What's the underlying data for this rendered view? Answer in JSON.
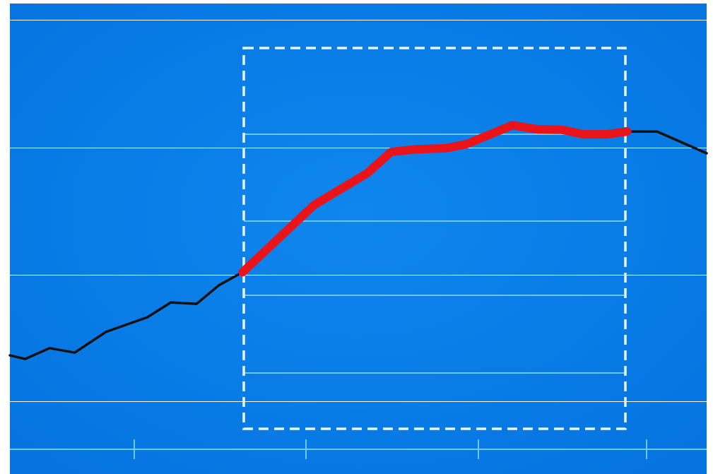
{
  "chart_data": {
    "type": "line",
    "x": [
      0,
      2.2,
      5.7,
      9.3,
      13.8,
      19.7,
      23.1,
      26.8,
      30.0,
      33.4,
      43.7,
      51.3,
      54.7,
      58.4,
      62.5,
      65.5,
      72.1,
      75.7,
      79.2,
      82.3,
      85.8,
      88.6,
      92.9,
      100
    ],
    "xlim": [
      0,
      100
    ],
    "ylim": [
      0,
      100
    ],
    "series": [
      {
        "color": "#111111",
        "values": [
          21.4,
          20.6,
          23.0,
          22.0,
          26.6,
          29.8,
          33.1,
          32.8,
          36.9,
          39.8,
          54.7,
          61.7,
          66.4,
          67.0,
          67.2,
          68.1,
          72.3,
          71.4,
          71.3,
          70.3,
          70.3,
          70.9,
          70.9,
          66.1
        ]
      },
      {
        "color": "#e8141a",
        "values": [
          null,
          null,
          null,
          null,
          null,
          null,
          null,
          null,
          null,
          39.8,
          54.7,
          61.7,
          66.4,
          67.0,
          67.2,
          68.1,
          72.3,
          71.4,
          71.3,
          70.3,
          70.3,
          70.9,
          null,
          null
        ]
      }
    ]
  }
}
